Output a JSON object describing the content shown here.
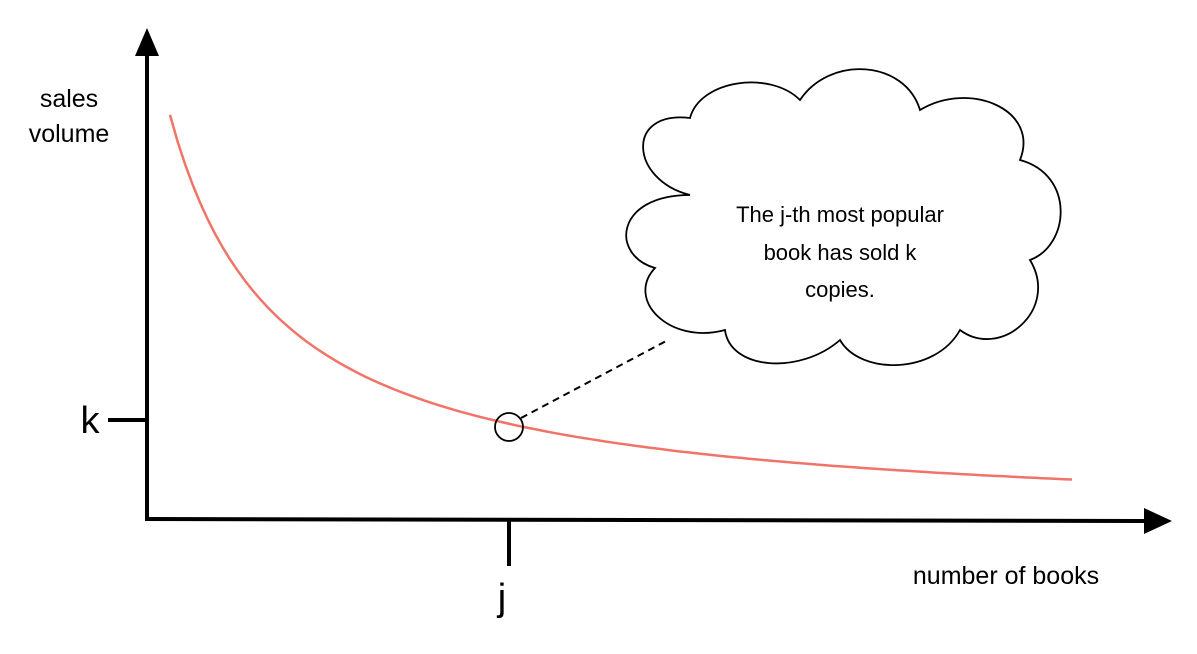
{
  "axes": {
    "y_label_lines": [
      "sales",
      "volume"
    ],
    "x_label": "number of books",
    "x_tick": "j",
    "y_tick": "k"
  },
  "annotation": {
    "lines": [
      "The j-th most popular",
      "book has sold k",
      "copies."
    ]
  },
  "colors": {
    "curve": "#f07468",
    "axis": "#000000"
  }
}
